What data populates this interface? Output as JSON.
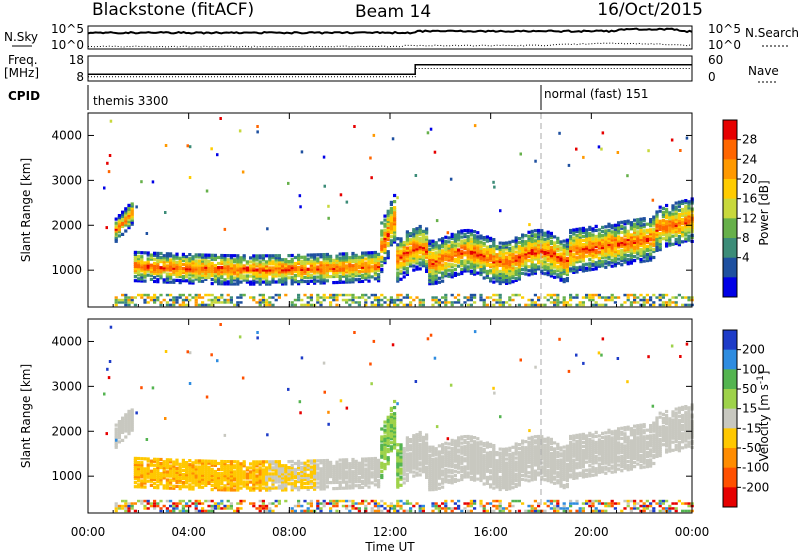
{
  "header": {
    "station": "Blackstone (fitACF)",
    "beam": "Beam 14",
    "date": "16/Oct/2015"
  },
  "labels": {
    "nsky": "N.Sky",
    "freq": "Freq.",
    "freq_unit": "[MHz]",
    "cpid": "CPID",
    "nsearch": "N.Search",
    "nave": "Nave",
    "nsky_ticks": [
      "10^5",
      "10^0"
    ],
    "nsearch_ticks": [
      "10^5",
      "10^0"
    ],
    "freq_ticks": [
      "18",
      "8"
    ],
    "nave_ticks": [
      "60",
      "0"
    ],
    "cpid_left": "themis 3300",
    "cpid_right": "normal (fast) 151",
    "xlabel": "Time UT",
    "ylabel": "Slant Range [km]"
  },
  "chart_data": [
    {
      "type": "line",
      "name": "status",
      "x_ticks": [
        "00:00",
        "04:00",
        "08:00",
        "12:00",
        "16:00",
        "20:00",
        "00:00"
      ],
      "xlim_hours": [
        0,
        24
      ],
      "freq_series": {
        "x": [
          0,
          13.0,
          13.0,
          24
        ],
        "y": [
          10.7,
          10.7,
          14.5,
          14.5
        ]
      },
      "nave_series": {
        "x": [
          0,
          13.0,
          13.0,
          24
        ],
        "y": [
          10,
          10,
          30,
          30
        ]
      },
      "cpid_change_hour": 18.0,
      "cpid_values": [
        3300,
        151
      ]
    },
    {
      "type": "heatmap",
      "name": "Power",
      "ylabel": "Slant Range [km]",
      "ylim": [
        180,
        4500
      ],
      "y_ticks": [
        1000,
        2000,
        3000,
        4000
      ],
      "x_ticks": [
        "00:00",
        "04:00",
        "08:00",
        "12:00",
        "16:00",
        "20:00",
        "00:00"
      ],
      "colorbar": {
        "label": "Power [dB]",
        "ticks": [
          "28",
          "24",
          "20",
          "16",
          "12",
          "8",
          "4"
        ],
        "colors": [
          "#e60000",
          "#ff6600",
          "#ff9900",
          "#ffcc00",
          "#c8d83c",
          "#66b04a",
          "#3c8c78",
          "#1e50a0",
          "#0000e6"
        ]
      }
    },
    {
      "type": "heatmap",
      "name": "Velocity",
      "ylabel": "Slant Range [km]",
      "ylim": [
        180,
        4500
      ],
      "y_ticks": [
        1000,
        2000,
        3000,
        4000
      ],
      "x_ticks": [
        "00:00",
        "04:00",
        "08:00",
        "12:00",
        "16:00",
        "20:00",
        "00:00"
      ],
      "colorbar": {
        "label": "Velocity [m s^-1]",
        "ticks": [
          "200",
          "100",
          "50",
          "15",
          "-15",
          "-50",
          "-100",
          "-200"
        ],
        "colors": [
          "#1e3cc8",
          "#2e8ce0",
          "#54b450",
          "#9ed24a",
          "#c8c8c0",
          "#ffc800",
          "#ff8c00",
          "#ff5000",
          "#e60000"
        ]
      }
    }
  ]
}
